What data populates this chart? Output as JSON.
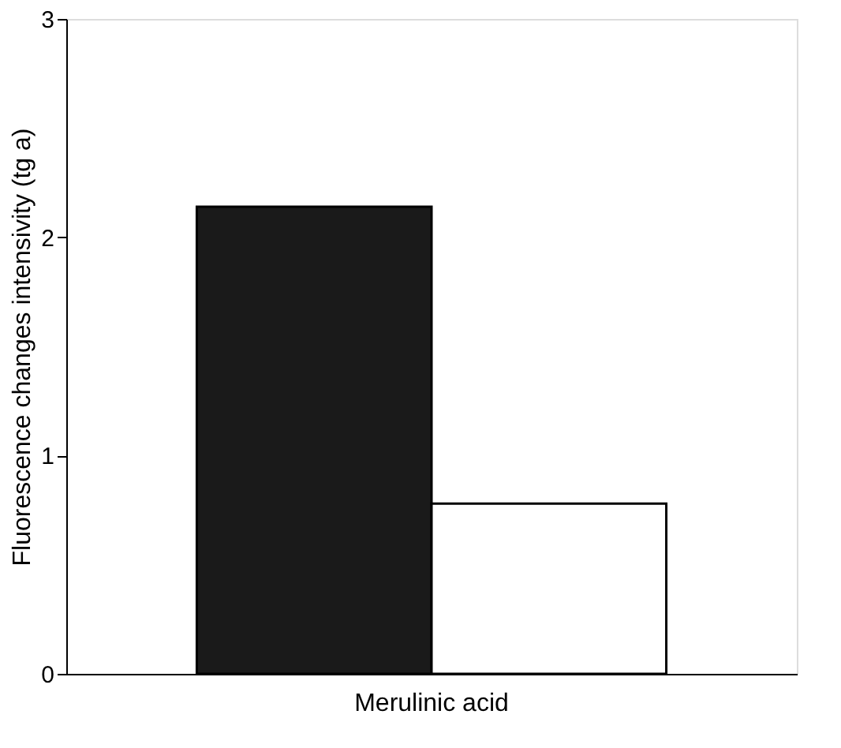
{
  "chart_data": {
    "type": "bar",
    "ylabel": "Fluorescence changes intensivity (tg a)",
    "categories": [
      "Merulinic acid"
    ],
    "series": [
      {
        "color": "#1a1a1a",
        "values": [
          2.14
        ]
      },
      {
        "color": "#ffffff",
        "values": [
          0.78
        ]
      }
    ],
    "ylim": [
      0,
      3
    ],
    "yticks": [
      0,
      1,
      2,
      3
    ],
    "grid": false,
    "legend": false
  }
}
